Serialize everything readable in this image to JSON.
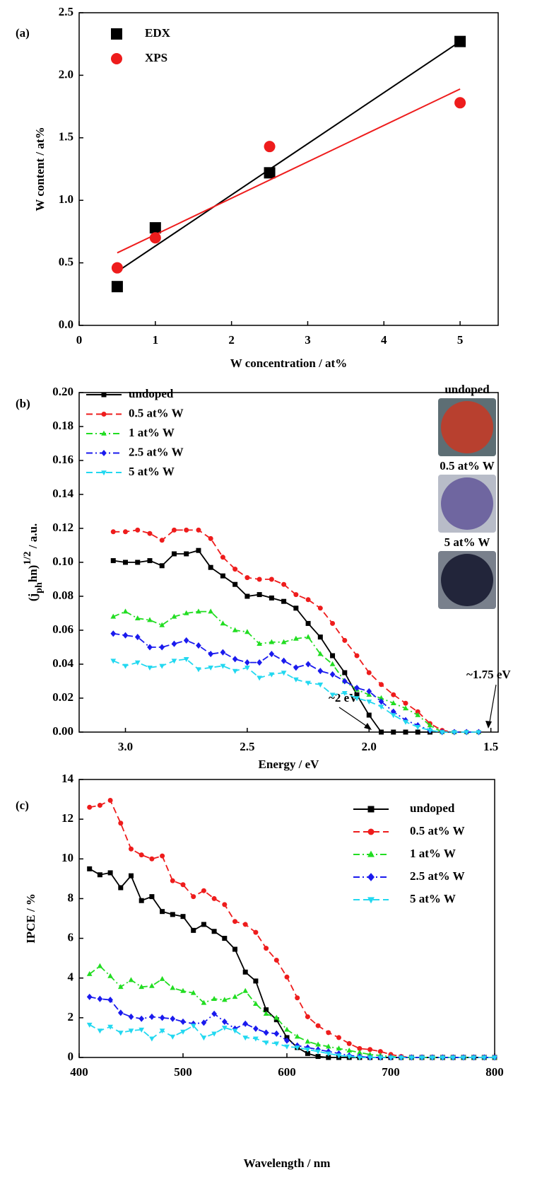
{
  "chart_data": [
    {
      "type": "scatter",
      "panel_label": "(a)",
      "xlabel": "W concentration / at%",
      "ylabel": "W content / at%",
      "x": [
        0.5,
        1,
        2.5,
        5
      ],
      "fit_x": [
        0.5,
        5
      ],
      "series": [
        {
          "name": "EDX",
          "color": "#000000",
          "marker": "square",
          "values": [
            0.31,
            0.78,
            1.22,
            2.27
          ],
          "fit": [
            0.43,
            2.27
          ]
        },
        {
          "name": "XPS",
          "color": "#ee1c1c",
          "marker": "circle",
          "values": [
            0.46,
            0.7,
            1.43,
            1.78
          ],
          "fit": [
            0.58,
            1.89
          ]
        }
      ],
      "xlim": [
        0,
        5.5
      ],
      "xticks": [
        0,
        1,
        2,
        3,
        4,
        5
      ],
      "ylim": [
        0,
        2.5
      ],
      "yticks": [
        {
          "value": 0,
          "label": "0.0"
        },
        {
          "value": 0.5,
          "label": "0.5"
        },
        {
          "value": 1,
          "label": "1.0"
        },
        {
          "value": 1.5,
          "label": "1.5"
        },
        {
          "value": 2,
          "label": "2.0"
        },
        {
          "value": 2.5,
          "label": "2.5"
        }
      ],
      "legend": "upper left",
      "grid": false
    },
    {
      "type": "line",
      "panel_label": "(b)",
      "xlabel": "Energy / eV",
      "ylabel": [
        "(j",
        "ph",
        "hn)",
        "1/2",
        " / a.u."
      ],
      "annotations": [
        "~2 eV",
        "~1.75 eV"
      ],
      "photo_labels": [
        "undoped",
        "0.5 at% W",
        "5 at% W"
      ],
      "x": [
        3.05,
        3.0,
        2.95,
        2.9,
        2.85,
        2.8,
        2.75,
        2.7,
        2.65,
        2.6,
        2.55,
        2.5,
        2.45,
        2.4,
        2.35,
        2.3,
        2.25,
        2.2,
        2.15,
        2.1,
        2.05,
        2.0,
        1.95,
        1.9,
        1.85,
        1.8,
        1.75,
        1.7,
        1.65,
        1.6,
        1.55
      ],
      "series": [
        {
          "name": "undoped",
          "color": "#000000",
          "marker": "square",
          "dash": "solid",
          "values": [
            0.101,
            0.1,
            0.1,
            0.101,
            0.098,
            0.105,
            0.105,
            0.107,
            0.097,
            0.092,
            0.087,
            0.08,
            0.081,
            0.079,
            0.077,
            0.073,
            0.064,
            0.056,
            0.045,
            0.035,
            0.022,
            0.01,
            0,
            0,
            0,
            0,
            0,
            null,
            null,
            null,
            null
          ]
        },
        {
          "name": "0.5 at% W",
          "color": "#ee1c1c",
          "marker": "circle",
          "dash": "dash",
          "values": [
            0.118,
            0.118,
            0.119,
            0.117,
            0.113,
            0.119,
            0.119,
            0.119,
            0.114,
            0.103,
            0.096,
            0.091,
            0.09,
            0.09,
            0.087,
            0.081,
            0.078,
            0.073,
            0.064,
            0.054,
            0.045,
            0.035,
            0.028,
            0.022,
            0.017,
            0.012,
            0.005,
            0.001,
            0,
            0,
            0
          ]
        },
        {
          "name": "1 at% W",
          "color": "#22dd22",
          "marker": "triangle-up",
          "dash": "dashdot",
          "values": [
            0.068,
            0.071,
            0.067,
            0.066,
            0.063,
            0.068,
            0.07,
            0.071,
            0.071,
            0.064,
            0.06,
            0.059,
            0.052,
            0.053,
            0.053,
            0.055,
            0.056,
            0.046,
            0.04,
            0.03,
            0.025,
            0.022,
            0.02,
            0.017,
            0.014,
            0.01,
            0.004,
            0,
            0,
            0,
            0
          ]
        },
        {
          "name": "2.5 at% W",
          "color": "#1a1aee",
          "marker": "diamond",
          "dash": "dashdot",
          "values": [
            0.058,
            0.057,
            0.056,
            0.05,
            0.05,
            0.052,
            0.054,
            0.051,
            0.046,
            0.047,
            0.043,
            0.041,
            0.041,
            0.046,
            0.042,
            0.038,
            0.04,
            0.036,
            0.034,
            0.03,
            0.026,
            0.024,
            0.018,
            0.012,
            0.007,
            0.004,
            0.001,
            0,
            0,
            0,
            0
          ]
        },
        {
          "name": "5 at% W",
          "color": "#22d8f0",
          "marker": "triangle-down",
          "dash": "dash",
          "values": [
            0.042,
            0.039,
            0.041,
            0.038,
            0.039,
            0.042,
            0.043,
            0.037,
            0.038,
            0.039,
            0.036,
            0.038,
            0.032,
            0.034,
            0.035,
            0.031,
            0.029,
            0.028,
            0.022,
            0.023,
            0.02,
            0.018,
            0.015,
            0.01,
            0.006,
            0.003,
            0.001,
            0,
            0,
            0,
            0
          ]
        }
      ],
      "xlim": [
        3.19,
        1.47
      ],
      "xticks": [
        {
          "value": 3,
          "label": "3.0"
        },
        2.5,
        {
          "value": 2,
          "label": "2.0"
        },
        1.5
      ],
      "ylim": [
        0,
        0.2
      ],
      "yticks": [
        {
          "value": 0,
          "label": "0.00"
        },
        {
          "value": 0.02,
          "label": "0.02"
        },
        {
          "value": 0.04,
          "label": "0.04"
        },
        {
          "value": 0.06,
          "label": "0.06"
        },
        {
          "value": 0.08,
          "label": "0.08"
        },
        {
          "value": 0.1,
          "label": "0.10"
        },
        {
          "value": 0.12,
          "label": "0.12"
        },
        {
          "value": 0.14,
          "label": "0.14"
        },
        {
          "value": 0.16,
          "label": "0.16"
        },
        {
          "value": 0.18,
          "label": "0.18"
        },
        {
          "value": 0.2,
          "label": "0.20"
        }
      ],
      "legend": "upper left",
      "grid": false
    },
    {
      "type": "line",
      "panel_label": "(c)",
      "xlabel": "Wavelength / nm",
      "ylabel": "IPCE / %",
      "x": [
        410,
        420,
        430,
        440,
        450,
        460,
        470,
        480,
        490,
        500,
        510,
        520,
        530,
        540,
        550,
        560,
        570,
        580,
        590,
        600,
        610,
        620,
        630,
        640,
        650,
        660,
        670,
        680,
        690,
        700,
        710,
        720,
        730,
        740,
        750,
        760,
        770,
        780,
        790,
        800
      ],
      "series": [
        {
          "name": "undoped",
          "color": "#000000",
          "marker": "square",
          "dash": "solid",
          "values": [
            9.5,
            9.2,
            9.3,
            8.55,
            9.15,
            7.9,
            8.1,
            7.35,
            7.2,
            7.1,
            6.4,
            6.7,
            6.35,
            6.0,
            5.45,
            4.3,
            3.85,
            2.4,
            1.9,
            1.0,
            0.5,
            0.2,
            0.05,
            0,
            0,
            0,
            0,
            0,
            0,
            0,
            0,
            0,
            0,
            0,
            0,
            0,
            0,
            0,
            0,
            0
          ]
        },
        {
          "name": "0.5 at% W",
          "color": "#ee1c1c",
          "marker": "circle",
          "dash": "dash",
          "values": [
            12.6,
            12.7,
            12.95,
            11.8,
            10.5,
            10.2,
            10.0,
            10.15,
            8.9,
            8.7,
            8.1,
            8.4,
            8.0,
            7.7,
            6.85,
            6.7,
            6.3,
            5.5,
            4.9,
            4.05,
            3.0,
            2.05,
            1.6,
            1.25,
            1.0,
            0.7,
            0.45,
            0.4,
            0.3,
            0.15,
            0.05,
            0,
            0,
            0,
            0,
            0,
            0,
            0,
            0,
            0
          ]
        },
        {
          "name": "1 at% W",
          "color": "#22dd22",
          "marker": "triangle-up",
          "dash": "dashdot",
          "values": [
            4.2,
            4.6,
            4.1,
            3.55,
            3.9,
            3.55,
            3.6,
            3.95,
            3.5,
            3.35,
            3.25,
            2.75,
            2.95,
            2.9,
            3.05,
            3.35,
            2.7,
            2.2,
            2.0,
            1.4,
            1.05,
            0.8,
            0.65,
            0.55,
            0.45,
            0.35,
            0.25,
            0.15,
            0.1,
            0.05,
            0,
            0,
            0,
            0,
            0,
            0,
            0,
            0,
            0,
            0
          ]
        },
        {
          "name": "2.5 at% W",
          "color": "#1a1aee",
          "marker": "diamond",
          "dash": "dashdot",
          "values": [
            3.05,
            2.95,
            2.9,
            2.25,
            2.05,
            1.95,
            2.05,
            2.0,
            1.95,
            1.8,
            1.7,
            1.75,
            2.2,
            1.8,
            1.45,
            1.7,
            1.45,
            1.25,
            1.2,
            0.85,
            0.6,
            0.5,
            0.4,
            0.3,
            0.2,
            0.1,
            0.05,
            0,
            0,
            0,
            0,
            0,
            0,
            0,
            0,
            0,
            0,
            0,
            0,
            0
          ]
        },
        {
          "name": "5 at% W",
          "color": "#22d8f0",
          "marker": "triangle-down",
          "dash": "dash",
          "values": [
            1.65,
            1.35,
            1.55,
            1.25,
            1.35,
            1.4,
            0.95,
            1.35,
            1.05,
            1.3,
            1.6,
            1.0,
            1.2,
            1.5,
            1.35,
            1.0,
            0.95,
            0.75,
            0.7,
            0.55,
            0.5,
            0.4,
            0.3,
            0.2,
            0.1,
            0.05,
            0,
            0,
            0,
            0,
            0,
            0,
            0,
            0,
            0,
            0,
            0,
            0,
            0,
            0
          ]
        }
      ],
      "xlim": [
        400,
        800
      ],
      "xticks": [
        400,
        500,
        600,
        700,
        800
      ],
      "ylim": [
        0,
        14
      ],
      "yticks": [
        0,
        2,
        4,
        6,
        8,
        10,
        12,
        14
      ],
      "legend": "upper right",
      "grid": false
    }
  ]
}
